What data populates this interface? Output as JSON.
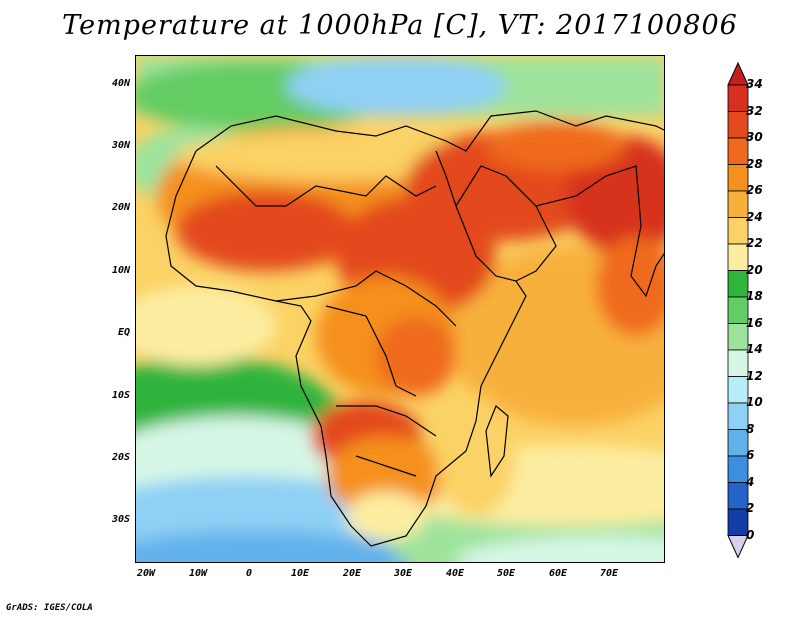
{
  "title": "Temperature at 1000hPa [C], VT: 2017100806",
  "footer": "GrADS: IGES/COLA",
  "map": {
    "lat_labels": [
      "40N",
      "30N",
      "20N",
      "10N",
      "EQ",
      "10S",
      "20S",
      "30S"
    ],
    "lon_labels": [
      "20W",
      "10W",
      "0",
      "10E",
      "20E",
      "30E",
      "40E",
      "50E",
      "60E",
      "70E"
    ]
  },
  "colorbar": {
    "labels": [
      "34",
      "32",
      "30",
      "28",
      "26",
      "24",
      "22",
      "20",
      "18",
      "16",
      "14",
      "12",
      "10",
      "8",
      "6",
      "4",
      "2",
      "0"
    ],
    "colors": [
      "#d7301f",
      "#e34a1e",
      "#ef6a1c",
      "#f5901f",
      "#f8b03c",
      "#fbd265",
      "#fdeda1",
      "#2fb43c",
      "#64cc64",
      "#9ee39c",
      "#d6f7e6",
      "#b8ecf9",
      "#8fd0f5",
      "#62b1eb",
      "#3c8ee0",
      "#2464c8",
      "#123ea6",
      "#0a1f78"
    ],
    "top_arrow_color": "#c81e1e",
    "bottom_arrow_color": "#d9d0ee"
  }
}
